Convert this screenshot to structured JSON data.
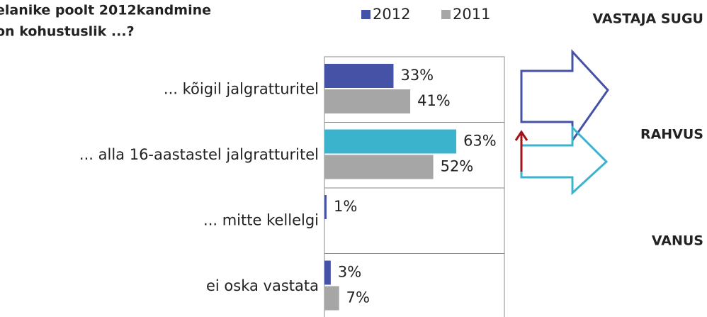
{
  "chart_data": {
    "type": "bar",
    "orientation": "horizontal",
    "title": [
      "elanike poolt 2012kandmine",
      "on kohustuslik ...?"
    ],
    "side_labels": [
      "VASTAJA SUGU",
      "RAHVUS",
      "VANUS"
    ],
    "categories": [
      "... kõigil jalgratturitel",
      "... alla 16-aastastel jalgratturitel",
      "... mitte kellelgi",
      "ei oska vastata"
    ],
    "series": [
      {
        "name": "2012",
        "color": "#4652a6",
        "colors": [
          "#4652a6",
          "#3cb3cc",
          "#4652a6",
          "#4652a6"
        ],
        "values": [
          33,
          63,
          1,
          3
        ],
        "value_labels": [
          "33%",
          "63%",
          "1%",
          "3%"
        ]
      },
      {
        "name": "2011",
        "color": "#a6a6a6",
        "values": [
          41,
          52,
          null,
          7
        ],
        "value_labels": [
          "41%",
          "52%",
          null,
          "7%"
        ]
      }
    ],
    "xlim": [
      0,
      86
    ]
  }
}
